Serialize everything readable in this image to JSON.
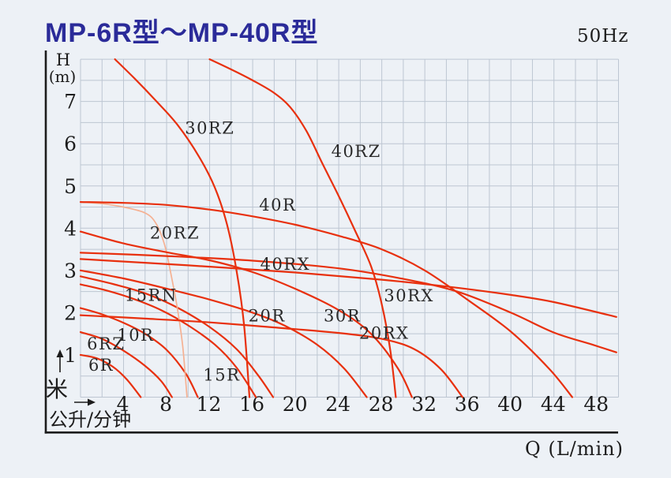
{
  "title": "MP-6R型～MP-40R型",
  "frequency": "50Hz",
  "colors": {
    "background": "#edf1f6",
    "title_text": "#2b2b99",
    "grid": "#bdc6d2",
    "axis": "#1c1c1c",
    "curve": "#e8300e",
    "curve_pale": "#f5b193",
    "text": "#1d1d1d"
  },
  "chart_data": {
    "type": "line",
    "title": "MP-6R型～MP-40R型",
    "frequency_label": "50Hz",
    "legend_position": "labels-on-curves",
    "grid": "on",
    "x_axis": {
      "label": "Q (L/min)",
      "unit_cn": "公升/分钟",
      "min": 0,
      "max": 50,
      "grid_step": 2,
      "ticks": [
        4,
        8,
        12,
        16,
        20,
        24,
        28,
        32,
        36,
        40,
        44,
        48
      ]
    },
    "y_axis": {
      "label": "H",
      "unit": "(m)",
      "unit_cn": "米",
      "min": 0,
      "max": 8,
      "grid_step": 0.5,
      "ticks": [
        1,
        2,
        3,
        4,
        5,
        6,
        7
      ]
    },
    "series": [
      {
        "name": "6R",
        "style": "normal",
        "label_at": [
          0.73,
          0.91
        ],
        "points": [
          [
            0,
            1.0
          ],
          [
            1.5,
            0.92
          ],
          [
            3,
            0.72
          ],
          [
            4.3,
            0.42
          ],
          [
            5.6,
            0
          ]
        ]
      },
      {
        "name": "6RZ",
        "style": "normal",
        "label_at": [
          0.6,
          1.41
        ],
        "points": [
          [
            0,
            1.54
          ],
          [
            2,
            1.38
          ],
          [
            4,
            1.1
          ],
          [
            6,
            0.74
          ],
          [
            7.5,
            0.38
          ],
          [
            8.5,
            0
          ]
        ]
      },
      {
        "name": "10R",
        "style": "normal",
        "label_at": [
          3.4,
          1.62
        ],
        "points": [
          [
            0,
            2.11
          ],
          [
            2,
            1.96
          ],
          [
            4,
            1.76
          ],
          [
            6,
            1.5
          ],
          [
            8,
            1.12
          ],
          [
            9.8,
            0.55
          ],
          [
            10.9,
            0
          ]
        ]
      },
      {
        "name": "15RN",
        "style": "normal",
        "label_at": [
          4.1,
          2.56
        ],
        "points": [
          [
            0,
            2.67
          ],
          [
            2.5,
            2.52
          ],
          [
            5,
            2.32
          ],
          [
            7.5,
            2.06
          ],
          [
            10,
            1.7
          ],
          [
            12.5,
            1.24
          ],
          [
            14.5,
            0.7
          ],
          [
            16.3,
            0
          ]
        ]
      },
      {
        "name": "15R",
        "style": "normal",
        "label_at": [
          11.4,
          0.68
        ],
        "points": [
          [
            0,
            2.86
          ],
          [
            3,
            2.68
          ],
          [
            6,
            2.46
          ],
          [
            9,
            2.12
          ],
          [
            12,
            1.66
          ],
          [
            14.5,
            1.14
          ],
          [
            16.5,
            0.52
          ],
          [
            17.9,
            0
          ]
        ]
      },
      {
        "name": "20R",
        "style": "normal",
        "label_at": [
          15.6,
          2.08
        ],
        "points": [
          [
            0,
            3.0
          ],
          [
            4,
            2.81
          ],
          [
            8,
            2.57
          ],
          [
            12,
            2.31
          ],
          [
            16,
            2.0
          ],
          [
            19,
            1.69
          ],
          [
            22,
            1.24
          ],
          [
            24.5,
            0.68
          ],
          [
            26.6,
            0
          ]
        ]
      },
      {
        "name": "20RZ",
        "style": "pale",
        "label_at": [
          6.45,
          4.04
        ],
        "points": [
          [
            0,
            4.62
          ],
          [
            2,
            4.58
          ],
          [
            4,
            4.5
          ],
          [
            6,
            4.36
          ],
          [
            7,
            4.12
          ],
          [
            7.8,
            3.62
          ],
          [
            8.4,
            2.92
          ],
          [
            9,
            2.1
          ],
          [
            9.5,
            1.2
          ],
          [
            9.9,
            0
          ]
        ]
      },
      {
        "name": "20RX",
        "style": "normal",
        "label_at": [
          25.9,
          1.67
        ],
        "points": [
          [
            0,
            1.94
          ],
          [
            6,
            1.86
          ],
          [
            12,
            1.77
          ],
          [
            18,
            1.65
          ],
          [
            24,
            1.52
          ],
          [
            28,
            1.38
          ],
          [
            31,
            1.14
          ],
          [
            33.5,
            0.66
          ],
          [
            35.5,
            0
          ]
        ]
      },
      {
        "name": "30R",
        "style": "normal",
        "label_at": [
          22.6,
          2.08
        ],
        "points": [
          [
            0,
            3.92
          ],
          [
            4,
            3.64
          ],
          [
            8,
            3.43
          ],
          [
            12,
            3.24
          ],
          [
            16,
            2.96
          ],
          [
            20,
            2.56
          ],
          [
            24,
            2.06
          ],
          [
            27,
            1.5
          ],
          [
            29.5,
            0.68
          ],
          [
            30.8,
            0
          ]
        ]
      },
      {
        "name": "30RZ",
        "style": "normal",
        "label_at": [
          9.7,
          6.52
        ],
        "points": [
          [
            3.2,
            8.0
          ],
          [
            5,
            7.55
          ],
          [
            7,
            7.02
          ],
          [
            9,
            6.45
          ],
          [
            11,
            5.7
          ],
          [
            12.5,
            4.95
          ],
          [
            13.6,
            4.1
          ],
          [
            14.5,
            3.0
          ],
          [
            15.2,
            1.7
          ],
          [
            15.7,
            0
          ]
        ]
      },
      {
        "name": "30RX",
        "style": "normal",
        "label_at": [
          28.2,
          2.55
        ],
        "points": [
          [
            0,
            3.27
          ],
          [
            10,
            3.12
          ],
          [
            20,
            2.95
          ],
          [
            28,
            2.78
          ],
          [
            34,
            2.62
          ],
          [
            40,
            2.42
          ],
          [
            44,
            2.25
          ],
          [
            49.8,
            1.9
          ]
        ]
      },
      {
        "name": "40R",
        "style": "normal",
        "label_at": [
          16.6,
          4.7
        ],
        "points": [
          [
            0,
            4.62
          ],
          [
            4,
            4.6
          ],
          [
            8,
            4.55
          ],
          [
            12,
            4.44
          ],
          [
            16,
            4.28
          ],
          [
            20,
            4.08
          ],
          [
            24,
            3.82
          ],
          [
            28,
            3.5
          ],
          [
            32,
            3.0
          ],
          [
            36,
            2.3
          ],
          [
            40,
            1.55
          ],
          [
            43.6,
            0.66
          ],
          [
            45.7,
            0
          ]
        ]
      },
      {
        "name": "40RZ",
        "style": "normal",
        "label_at": [
          23.3,
          5.97
        ],
        "points": [
          [
            12,
            8.0
          ],
          [
            14,
            7.76
          ],
          [
            16,
            7.5
          ],
          [
            18,
            7.2
          ],
          [
            19.5,
            6.86
          ],
          [
            21,
            6.3
          ],
          [
            22.5,
            5.52
          ],
          [
            24,
            4.76
          ],
          [
            25.5,
            3.95
          ],
          [
            27,
            3.1
          ],
          [
            28,
            2.2
          ],
          [
            28.8,
            1.1
          ],
          [
            29.3,
            0
          ]
        ]
      },
      {
        "name": "40RX",
        "style": "normal",
        "label_at": [
          16.7,
          3.3
        ],
        "points": [
          [
            0,
            3.42
          ],
          [
            8,
            3.34
          ],
          [
            16,
            3.23
          ],
          [
            24,
            3.05
          ],
          [
            30,
            2.8
          ],
          [
            35,
            2.5
          ],
          [
            40,
            2.0
          ],
          [
            44,
            1.53
          ],
          [
            47.5,
            1.25
          ],
          [
            49.8,
            1.06
          ]
        ]
      }
    ]
  }
}
